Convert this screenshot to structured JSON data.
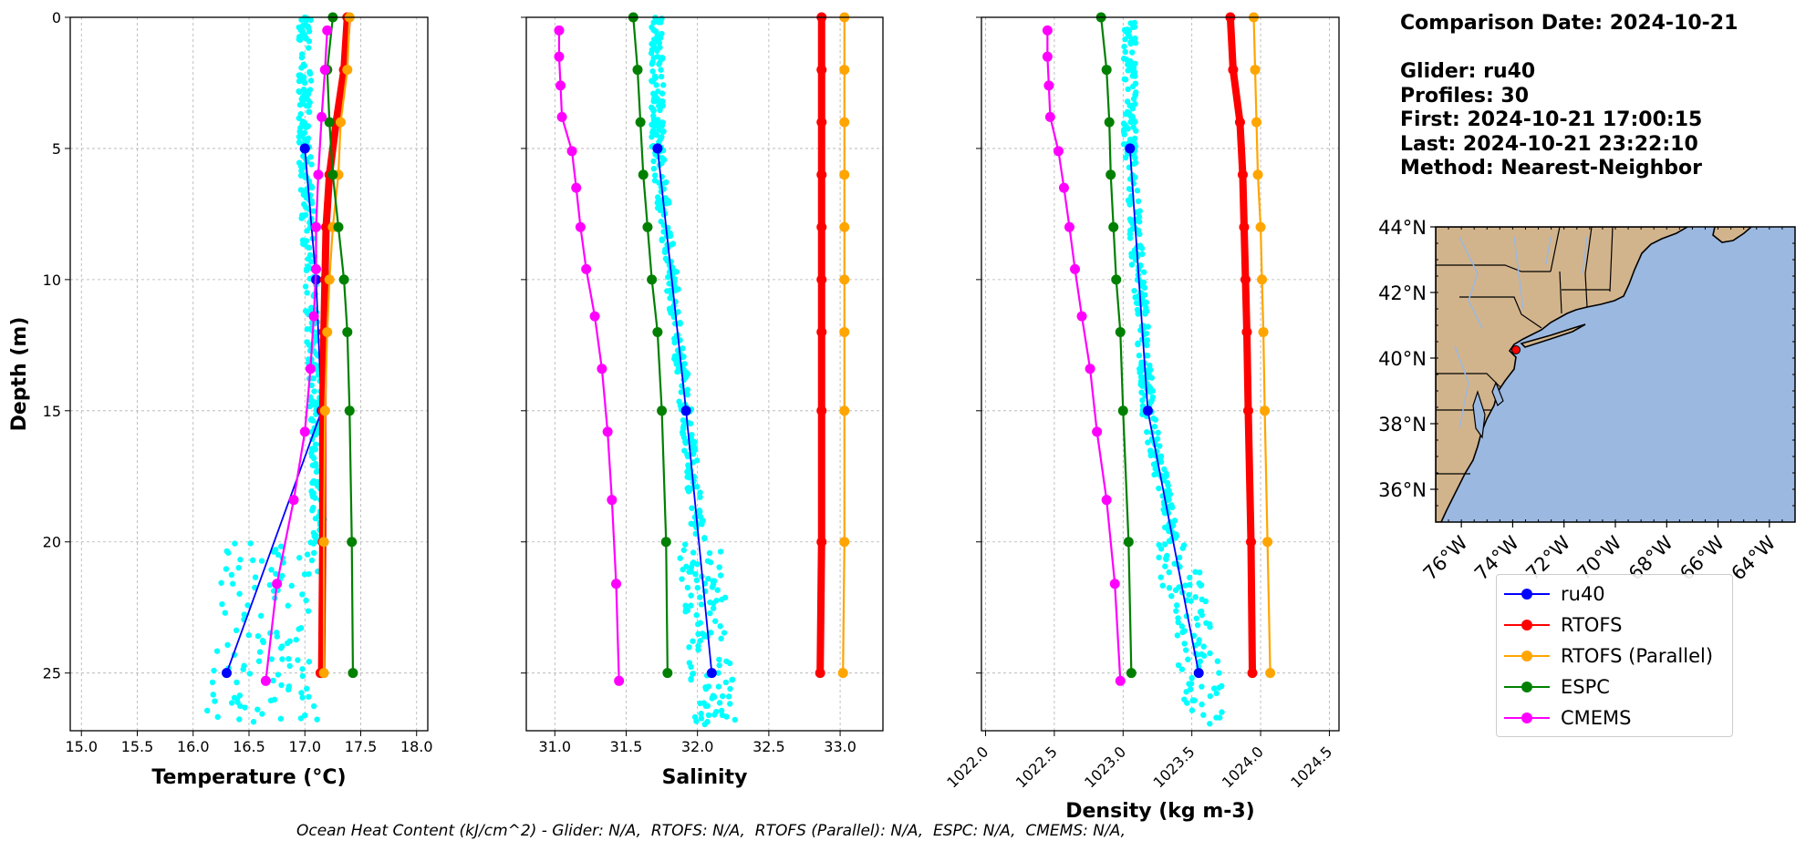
{
  "info": {
    "comparison_date": "Comparison Date: 2024-10-21",
    "glider": "Glider: ru40",
    "profiles": "Profiles: 30",
    "first": "First: 2024-10-21 17:00:15",
    "last": "Last: 2024-10-21 23:22:10",
    "method": "Method: Nearest-Neighbor"
  },
  "footer": "Ocean Heat Content (kJ/cm^2) - Glider: N/A,  RTOFS: N/A,  RTOFS (Parallel): N/A,  ESPC: N/A,  CMEMS: N/A,",
  "legend": [
    {
      "label": "ru40",
      "color": "#0000ff"
    },
    {
      "label": "RTOFS",
      "color": "#ff0000"
    },
    {
      "label": "RTOFS (Parallel)",
      "color": "#ffa500"
    },
    {
      "label": "ESPC",
      "color": "#008000"
    },
    {
      "label": "CMEMS",
      "color": "#ff00ff"
    }
  ],
  "map": {
    "lat_labels": [
      "44°N",
      "42°N",
      "40°N",
      "38°N",
      "36°N"
    ],
    "lon_labels": [
      "76°W",
      "74°W",
      "72°W",
      "70°W",
      "68°W",
      "66°W",
      "64°W"
    ],
    "land_color": "#d2b48c",
    "ocean_color": "#9bb8e0",
    "glider_marker": {
      "lon": -73.8,
      "lat": 40.4,
      "color": "#ff0000"
    }
  },
  "chart_data": [
    {
      "type": "line",
      "xlabel": "Temperature (°C)",
      "ylabel": "Depth (m)",
      "xlim": [
        14.9,
        18.1
      ],
      "ylim": [
        27.2,
        0
      ],
      "xticks": [
        "15.0",
        "15.5",
        "16.0",
        "16.5",
        "17.0",
        "17.5",
        "18.0"
      ],
      "yticks": [
        "0",
        "5",
        "10",
        "15",
        "20",
        "25"
      ],
      "grid": true,
      "series": [
        {
          "name": "ru40",
          "color": "#0000ff",
          "x": [
            17.0,
            17.1,
            17.15,
            16.3
          ],
          "y": [
            5,
            10,
            15,
            25
          ]
        },
        {
          "name": "RTOFS",
          "color": "#ff0000",
          "x": [
            17.38,
            17.35,
            17.28,
            17.22,
            17.19,
            17.18,
            17.17,
            17.16,
            17.16,
            17.15,
            17.15,
            17.14
          ],
          "y": [
            0,
            2,
            4,
            6,
            8,
            10,
            12,
            15,
            20,
            25,
            25,
            25
          ]
        },
        {
          "name": "RTOFS (Parallel)",
          "color": "#ffa500",
          "x": [
            17.4,
            17.38,
            17.32,
            17.3,
            17.25,
            17.22,
            17.2,
            17.18,
            17.17,
            17.17
          ],
          "y": [
            0,
            2,
            4,
            6,
            8,
            10,
            12,
            15,
            20,
            25
          ]
        },
        {
          "name": "ESPC",
          "color": "#008000",
          "x": [
            17.25,
            17.2,
            17.22,
            17.25,
            17.3,
            17.35,
            17.38,
            17.4,
            17.42,
            17.43
          ],
          "y": [
            0,
            2,
            4,
            6,
            8,
            10,
            12,
            15,
            20,
            25
          ]
        },
        {
          "name": "CMEMS",
          "color": "#ff00ff",
          "x": [
            17.2,
            17.18,
            17.15,
            17.12,
            17.1,
            17.1,
            17.08,
            17.05,
            17.0,
            16.9,
            16.75,
            16.65
          ],
          "y": [
            0.5,
            2,
            3.8,
            6,
            8,
            9.6,
            11.4,
            13.4,
            15.8,
            18.4,
            21.6,
            25.3
          ]
        }
      ]
    },
    {
      "type": "line",
      "xlabel": "Salinity",
      "xlim": [
        30.8,
        33.3
      ],
      "ylim": [
        27.2,
        0
      ],
      "xticks": [
        "31.0",
        "31.5",
        "32.0",
        "32.5",
        "33.0"
      ],
      "grid": true,
      "series": [
        {
          "name": "ru40",
          "color": "#0000ff",
          "x": [
            31.72,
            31.92,
            32.1
          ],
          "y": [
            5,
            15,
            25
          ]
        },
        {
          "name": "RTOFS",
          "color": "#ff0000",
          "x": [
            32.87,
            32.87,
            32.87,
            32.87,
            32.87,
            32.87,
            32.87,
            32.87,
            32.87,
            32.86
          ],
          "y": [
            0,
            2,
            4,
            6,
            8,
            10,
            12,
            15,
            20,
            25
          ]
        },
        {
          "name": "RTOFS (Parallel)",
          "color": "#ffa500",
          "x": [
            33.03,
            33.03,
            33.03,
            33.03,
            33.03,
            33.03,
            33.03,
            33.03,
            33.03,
            33.02
          ],
          "y": [
            0,
            2,
            4,
            6,
            8,
            10,
            12,
            15,
            20,
            25
          ]
        },
        {
          "name": "ESPC",
          "color": "#008000",
          "x": [
            31.55,
            31.58,
            31.6,
            31.62,
            31.65,
            31.68,
            31.72,
            31.75,
            31.78,
            31.79
          ],
          "y": [
            0,
            2,
            4,
            6,
            8,
            10,
            12,
            15,
            20,
            25
          ]
        },
        {
          "name": "CMEMS",
          "color": "#ff00ff",
          "x": [
            31.03,
            31.03,
            31.04,
            31.05,
            31.12,
            31.15,
            31.18,
            31.22,
            31.28,
            31.33,
            31.37,
            31.4,
            31.43,
            31.45
          ],
          "y": [
            0.5,
            1.5,
            2.6,
            3.8,
            5.1,
            6.5,
            8.0,
            9.6,
            11.4,
            13.4,
            15.8,
            18.4,
            21.6,
            25.3
          ]
        }
      ]
    },
    {
      "type": "line",
      "xlabel": "Density (kg m-3)",
      "xlim": [
        1021.97,
        1024.57
      ],
      "ylim": [
        27.2,
        0
      ],
      "xticks": [
        "1022.0",
        "1022.5",
        "1023.0",
        "1023.5",
        "1024.0",
        "1024.5"
      ],
      "grid": true,
      "series": [
        {
          "name": "ru40",
          "color": "#0000ff",
          "x": [
            1023.05,
            1023.18,
            1023.55
          ],
          "y": [
            5,
            15,
            25
          ]
        },
        {
          "name": "RTOFS",
          "color": "#ff0000",
          "x": [
            1023.78,
            1023.8,
            1023.85,
            1023.87,
            1023.88,
            1023.89,
            1023.9,
            1023.91,
            1023.93,
            1023.94
          ],
          "y": [
            0,
            2,
            4,
            6,
            8,
            10,
            12,
            15,
            20,
            25
          ]
        },
        {
          "name": "RTOFS (Parallel)",
          "color": "#ffa500",
          "x": [
            1023.95,
            1023.96,
            1023.97,
            1023.98,
            1024.0,
            1024.01,
            1024.02,
            1024.03,
            1024.05,
            1024.07
          ],
          "y": [
            0,
            2,
            4,
            6,
            8,
            10,
            12,
            15,
            20,
            25
          ]
        },
        {
          "name": "ESPC",
          "color": "#008000",
          "x": [
            1022.84,
            1022.88,
            1022.9,
            1022.91,
            1022.93,
            1022.95,
            1022.98,
            1023.0,
            1023.04,
            1023.06
          ],
          "y": [
            0,
            2,
            4,
            6,
            8,
            10,
            12,
            15,
            20,
            25
          ]
        },
        {
          "name": "CMEMS",
          "color": "#ff00ff",
          "x": [
            1022.45,
            1022.45,
            1022.46,
            1022.47,
            1022.53,
            1022.57,
            1022.61,
            1022.65,
            1022.7,
            1022.76,
            1022.81,
            1022.88,
            1022.94,
            1022.98
          ],
          "y": [
            0.5,
            1.5,
            2.6,
            3.8,
            5.1,
            6.5,
            8.0,
            9.6,
            11.4,
            13.4,
            15.8,
            18.4,
            21.6,
            25.3
          ]
        }
      ]
    }
  ]
}
